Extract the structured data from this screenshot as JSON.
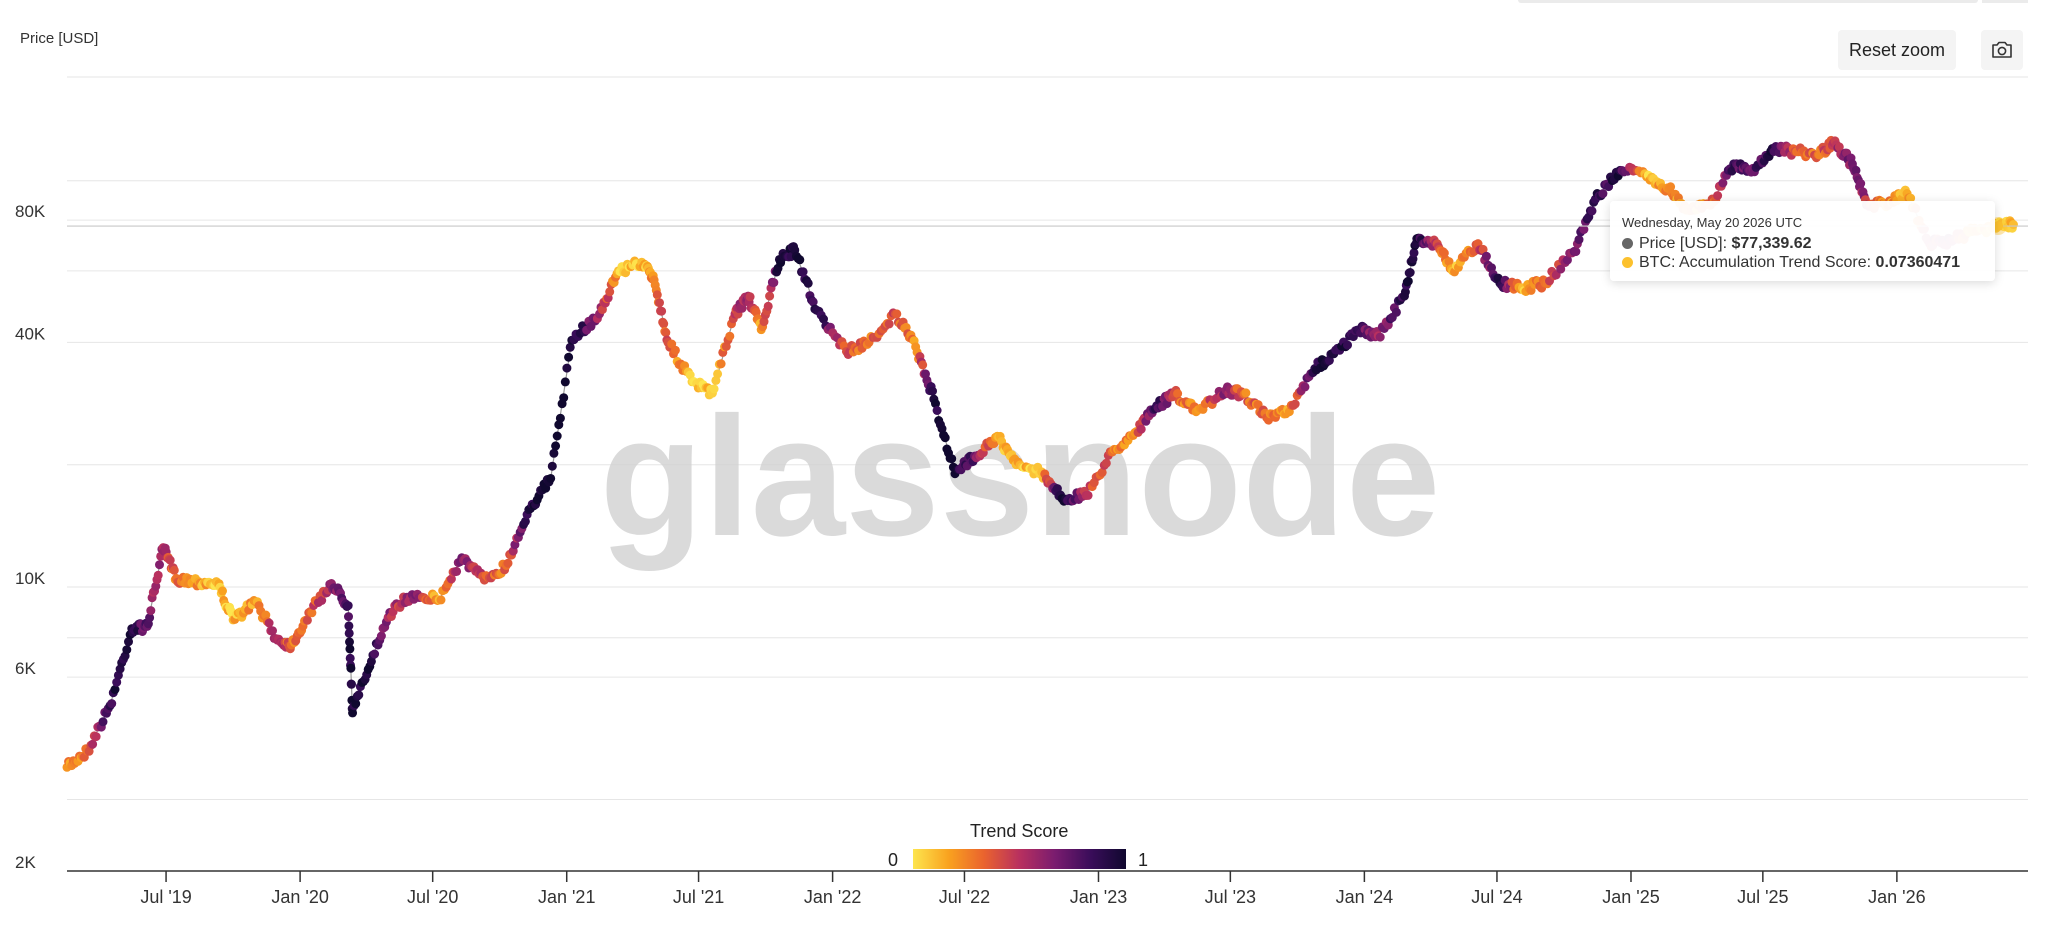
{
  "toolbar": {
    "reset_label": "Reset zoom",
    "camera_icon": "camera-icon"
  },
  "tooltip": {
    "date": "Wednesday, May 20 2026 UTC",
    "price_label": "Price [USD]: ",
    "price_value": "$77,339.62",
    "score_label": "BTC: Accumulation Trend Score: ",
    "score_value": "0.07360471",
    "price_dot_color": "#666666",
    "score_dot_color": "#fcc12d"
  },
  "legend": {
    "title": "Trend Score",
    "min": "0",
    "max": "1"
  },
  "watermark": "glassnode",
  "chart_data": {
    "type": "scatter",
    "title": "",
    "ylabel": "Price [USD]",
    "y_scale": "log",
    "ylim": [
      2000,
      180000
    ],
    "xlim": [
      "2019-02-15",
      "2026-06-30"
    ],
    "y_ticks": [
      {
        "value": 2000,
        "label": "2K"
      },
      {
        "value": 6000,
        "label": "6K"
      },
      {
        "value": 10000,
        "label": "10K"
      },
      {
        "value": 40000,
        "label": "40K"
      },
      {
        "value": 80000,
        "label": "80K"
      }
    ],
    "y_gridlines": [
      3000,
      6000,
      7500,
      10000,
      20000,
      40000,
      60000,
      80000,
      100000,
      180000
    ],
    "x_ticks": [
      {
        "date": "2019-07-01",
        "label": "Jul '19"
      },
      {
        "date": "2020-01-01",
        "label": "Jan '20"
      },
      {
        "date": "2020-07-01",
        "label": "Jul '20"
      },
      {
        "date": "2021-01-01",
        "label": "Jan '21"
      },
      {
        "date": "2021-07-01",
        "label": "Jul '21"
      },
      {
        "date": "2022-01-01",
        "label": "Jan '22"
      },
      {
        "date": "2022-07-01",
        "label": "Jul '22"
      },
      {
        "date": "2023-01-01",
        "label": "Jan '23"
      },
      {
        "date": "2023-07-01",
        "label": "Jul '23"
      },
      {
        "date": "2024-01-01",
        "label": "Jan '24"
      },
      {
        "date": "2024-07-01",
        "label": "Jul '24"
      },
      {
        "date": "2025-01-01",
        "label": "Jan '25"
      },
      {
        "date": "2025-07-01",
        "label": "Jul '25"
      },
      {
        "date": "2026-01-01",
        "label": "Jan '26"
      }
    ],
    "colorscale": {
      "name": "Trend Score",
      "min": 0,
      "max": 1,
      "colors": [
        "#fde54e",
        "#f9a21f",
        "#ea632e",
        "#b8305f",
        "#7a1c6f",
        "#3a0d5a",
        "#10082f"
      ]
    },
    "hover_reference": {
      "date": "2026-05-20",
      "price": 77339.62
    },
    "series": [
      {
        "name": "Price [USD]",
        "points": [
          [
            "2019-02-15",
            3600,
            0.2
          ],
          [
            "2019-03-15",
            3950,
            0.3
          ],
          [
            "2019-04-15",
            5100,
            0.9
          ],
          [
            "2019-05-15",
            7900,
            0.95
          ],
          [
            "2019-06-05",
            8000,
            0.7
          ],
          [
            "2019-06-27",
            12500,
            0.5
          ],
          [
            "2019-07-15",
            10500,
            0.3
          ],
          [
            "2019-08-15",
            10300,
            0.15
          ],
          [
            "2019-09-10",
            10200,
            0.1
          ],
          [
            "2019-10-01",
            8300,
            0.1
          ],
          [
            "2019-11-01",
            9200,
            0.2
          ],
          [
            "2019-12-01",
            7400,
            0.55
          ],
          [
            "2019-12-20",
            7200,
            0.3
          ],
          [
            "2020-01-15",
            8700,
            0.35
          ],
          [
            "2020-02-13",
            10200,
            0.6
          ],
          [
            "2020-03-07",
            9000,
            0.85
          ],
          [
            "2020-03-13",
            4900,
            1.0
          ],
          [
            "2020-04-10",
            6800,
            0.9
          ],
          [
            "2020-05-10",
            9000,
            0.5
          ],
          [
            "2020-06-10",
            9600,
            0.6
          ],
          [
            "2020-07-10",
            9300,
            0.1
          ],
          [
            "2020-08-10",
            11800,
            0.7
          ],
          [
            "2020-09-10",
            10400,
            0.4
          ],
          [
            "2020-10-10",
            11300,
            0.3
          ],
          [
            "2020-11-10",
            15500,
            0.95
          ],
          [
            "2020-12-10",
            18500,
            1.0
          ],
          [
            "2021-01-08",
            40500,
            0.98
          ],
          [
            "2021-02-15",
            47000,
            0.6
          ],
          [
            "2021-03-13",
            60000,
            0.1
          ],
          [
            "2021-04-14",
            63000,
            0.1
          ],
          [
            "2021-05-01",
            57000,
            0.25
          ],
          [
            "2021-05-20",
            40000,
            0.4
          ],
          [
            "2021-06-22",
            32000,
            0.05
          ],
          [
            "2021-07-20",
            30000,
            0.05
          ],
          [
            "2021-08-20",
            47000,
            0.5
          ],
          [
            "2021-09-07",
            52000,
            0.55
          ],
          [
            "2021-09-25",
            43000,
            0.2
          ],
          [
            "2021-10-20",
            64000,
            0.95
          ],
          [
            "2021-11-10",
            67500,
            0.95
          ],
          [
            "2021-12-10",
            48000,
            0.9
          ],
          [
            "2022-01-20",
            38000,
            0.4
          ],
          [
            "2022-02-20",
            40000,
            0.3
          ],
          [
            "2022-03-28",
            47000,
            0.4
          ],
          [
            "2022-04-25",
            39000,
            0.2
          ],
          [
            "2022-05-20",
            29000,
            0.95
          ],
          [
            "2022-06-18",
            19000,
            1.0
          ],
          [
            "2022-07-15",
            21000,
            0.7
          ],
          [
            "2022-08-15",
            23500,
            0.15
          ],
          [
            "2022-09-10",
            20000,
            0.1
          ],
          [
            "2022-10-15",
            19200,
            0.1
          ],
          [
            "2022-11-12",
            16500,
            1.0
          ],
          [
            "2022-12-15",
            16800,
            0.5
          ],
          [
            "2023-01-20",
            21500,
            0.3
          ],
          [
            "2023-02-20",
            24000,
            0.2
          ],
          [
            "2023-03-20",
            27500,
            0.9
          ],
          [
            "2023-04-15",
            30000,
            0.4
          ],
          [
            "2023-05-15",
            27000,
            0.2
          ],
          [
            "2023-06-25",
            30500,
            0.6
          ],
          [
            "2023-07-20",
            29900,
            0.3
          ],
          [
            "2023-08-20",
            26100,
            0.35
          ],
          [
            "2023-09-20",
            27000,
            0.2
          ],
          [
            "2023-10-25",
            34500,
            0.9
          ],
          [
            "2023-11-20",
            37500,
            0.95
          ],
          [
            "2023-12-25",
            43000,
            0.85
          ],
          [
            "2024-01-20",
            41500,
            0.5
          ],
          [
            "2024-02-25",
            52000,
            0.95
          ],
          [
            "2024-03-13",
            72000,
            0.95
          ],
          [
            "2024-04-10",
            70000,
            0.4
          ],
          [
            "2024-05-01",
            60000,
            0.1
          ],
          [
            "2024-06-05",
            70000,
            0.35
          ],
          [
            "2024-07-05",
            56000,
            0.95
          ],
          [
            "2024-08-05",
            54500,
            0.1
          ],
          [
            "2024-09-05",
            56000,
            0.3
          ],
          [
            "2024-10-15",
            67000,
            0.7
          ],
          [
            "2024-11-13",
            90000,
            0.85
          ],
          [
            "2024-12-17",
            106000,
            0.9
          ],
          [
            "2025-01-20",
            104000,
            0.1
          ],
          [
            "2025-02-20",
            96000,
            0.2
          ],
          [
            "2025-03-20",
            85000,
            0.25
          ],
          [
            "2025-04-20",
            87000,
            0.3
          ],
          [
            "2025-05-22",
            110000,
            0.85
          ],
          [
            "2025-06-15",
            105000,
            0.7
          ],
          [
            "2025-07-14",
            120000,
            0.95
          ],
          [
            "2025-08-14",
            118000,
            0.4
          ],
          [
            "2025-09-15",
            116000,
            0.3
          ],
          [
            "2025-10-06",
            124000,
            0.5
          ],
          [
            "2025-11-01",
            110000,
            0.7
          ],
          [
            "2025-11-22",
            87000,
            0.5
          ],
          [
            "2025-12-15",
            88000,
            0.2
          ],
          [
            "2026-01-15",
            93000,
            0.15
          ],
          [
            "2026-02-15",
            70000,
            0.55
          ],
          [
            "2026-03-15",
            71000,
            0.6
          ],
          [
            "2026-04-15",
            75000,
            0.2
          ],
          [
            "2026-05-20",
            77339.62,
            0.07360471
          ],
          [
            "2026-06-10",
            78000,
            0.1
          ]
        ]
      }
    ]
  }
}
